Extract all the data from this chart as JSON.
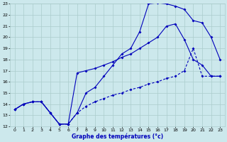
{
  "xlabel": "Graphe des températures (°c)",
  "bg_color": "#cce8ec",
  "grid_color": "#aacccc",
  "line_color": "#0000bb",
  "xlim": [
    -0.5,
    23.5
  ],
  "ylim": [
    12,
    23
  ],
  "xticks": [
    0,
    1,
    2,
    3,
    4,
    5,
    6,
    7,
    8,
    9,
    10,
    11,
    12,
    13,
    14,
    15,
    16,
    17,
    18,
    19,
    20,
    21,
    22,
    23
  ],
  "yticks": [
    12,
    13,
    14,
    15,
    16,
    17,
    18,
    19,
    20,
    21,
    22,
    23
  ],
  "line1_x": [
    0,
    1,
    2,
    3,
    4,
    5,
    6,
    7,
    8,
    9,
    10,
    11,
    12,
    13,
    14,
    15,
    16,
    17,
    18,
    19,
    20,
    21,
    22,
    23
  ],
  "line1_y": [
    13.5,
    14.0,
    14.2,
    14.2,
    13.2,
    12.2,
    12.2,
    13.2,
    15.0,
    15.5,
    16.5,
    17.5,
    18.5,
    19.0,
    20.5,
    23.0,
    23.1,
    23.0,
    22.8,
    22.5,
    21.5,
    21.3,
    20.0,
    18.0
  ],
  "line2_x": [
    0,
    1,
    2,
    3,
    4,
    5,
    6,
    7,
    8,
    9,
    10,
    11,
    12,
    13,
    14,
    15,
    16,
    17,
    18,
    19,
    20,
    21,
    22,
    23
  ],
  "line2_y": [
    13.5,
    14.0,
    14.2,
    14.2,
    13.2,
    12.2,
    12.2,
    16.8,
    17.0,
    17.2,
    17.5,
    17.8,
    18.2,
    18.5,
    19.0,
    19.5,
    20.0,
    21.0,
    21.2,
    19.8,
    18.0,
    17.5,
    16.5,
    16.5
  ],
  "line3_x": [
    0,
    1,
    2,
    3,
    4,
    5,
    6,
    7,
    8,
    9,
    10,
    11,
    12,
    13,
    14,
    15,
    16,
    17,
    18,
    19,
    20,
    21,
    22,
    23
  ],
  "line3_y": [
    13.5,
    14.0,
    14.2,
    14.2,
    13.2,
    12.2,
    12.2,
    13.2,
    13.8,
    14.2,
    14.5,
    14.8,
    15.0,
    15.3,
    15.5,
    15.8,
    16.0,
    16.3,
    16.5,
    17.0,
    19.0,
    16.5,
    16.5,
    16.5
  ]
}
